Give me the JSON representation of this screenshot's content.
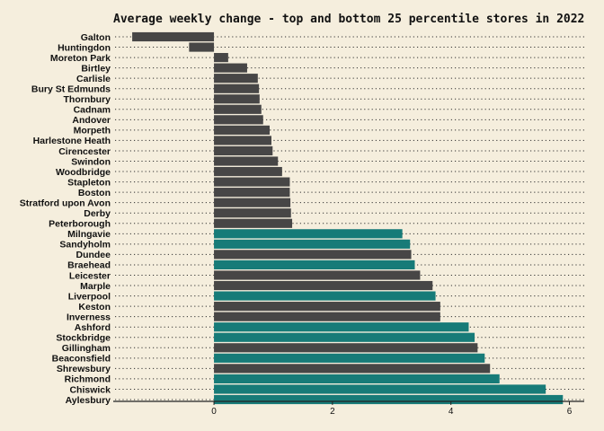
{
  "chart_data": {
    "type": "bar",
    "orientation": "horizontal",
    "title": "Average weekly change - top and bottom 25 percentile stores in 2022",
    "xlabel": "",
    "ylabel": "",
    "xlim": [
      -1.7,
      6.25
    ],
    "xticks": [
      0,
      2,
      4,
      6
    ],
    "grid": "dotted horizontal",
    "legend": "none",
    "colors": {
      "bottom": "#474646",
      "top": "#177b78",
      "background": "#f5eedd"
    },
    "categories": [
      "Galton",
      "Huntingdon",
      "Moreton Park",
      "Birtley",
      "Carlisle",
      "Bury St Edmunds",
      "Thornbury",
      "Cadnam",
      "Andover",
      "Morpeth",
      "Harlestone Heath",
      "Cirencester",
      "Swindon",
      "Woodbridge",
      "Stapleton",
      "Boston",
      "Stratford upon Avon",
      "Derby",
      "Peterborough",
      "Milngavie",
      "Sandyholm",
      "Dundee",
      "Braehead",
      "Leicester",
      "Marple",
      "Liverpool",
      "Keston",
      "Inverness",
      "Ashford",
      "Stockbridge",
      "Gillingham",
      "Beaconsfield",
      "Shrewsbury",
      "Richmond",
      "Chiswick",
      "Aylesbury"
    ],
    "values": [
      -1.38,
      -0.42,
      0.24,
      0.56,
      0.74,
      0.76,
      0.77,
      0.8,
      0.83,
      0.94,
      0.97,
      0.99,
      1.08,
      1.15,
      1.28,
      1.28,
      1.29,
      1.3,
      1.32,
      3.18,
      3.31,
      3.33,
      3.39,
      3.48,
      3.69,
      3.74,
      3.82,
      3.82,
      4.3,
      4.4,
      4.45,
      4.57,
      4.66,
      4.82,
      5.6,
      5.89
    ],
    "groups": [
      "bottom",
      "bottom",
      "bottom",
      "bottom",
      "bottom",
      "bottom",
      "bottom",
      "bottom",
      "bottom",
      "bottom",
      "bottom",
      "bottom",
      "bottom",
      "bottom",
      "bottom",
      "bottom",
      "bottom",
      "bottom",
      "bottom",
      "top",
      "top",
      "bottom",
      "top",
      "bottom",
      "bottom",
      "top",
      "bottom",
      "bottom",
      "top",
      "top",
      "bottom",
      "top",
      "bottom",
      "top",
      "top",
      "top"
    ]
  }
}
